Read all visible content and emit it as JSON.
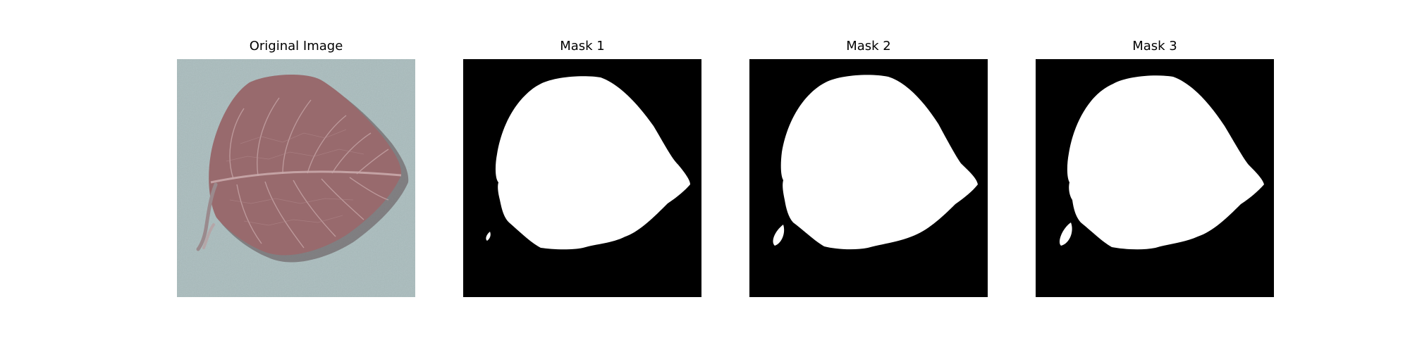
{
  "panels": [
    {
      "title": "Original Image",
      "kind": "photo"
    },
    {
      "title": "Mask 1",
      "kind": "mask"
    },
    {
      "title": "Mask 2",
      "kind": "mask"
    },
    {
      "title": "Mask 3",
      "kind": "mask"
    }
  ],
  "colors": {
    "background": "#ffffff",
    "photo_background": "#a9bcbd",
    "leaf": "#986a6d",
    "leaf_shadow": "#5c4d51",
    "leaf_vein": "#c9a8aa",
    "mask_background": "#000000",
    "mask_foreground": "#ffffff"
  }
}
